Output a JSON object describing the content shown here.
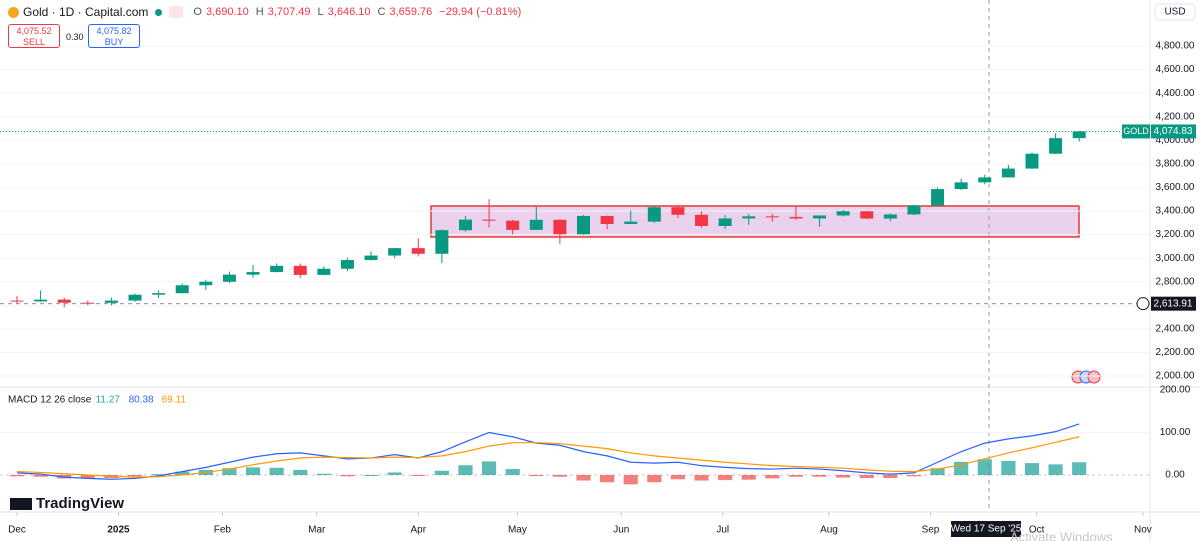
{
  "header": {
    "symbol": "Gold · 1D · Capital.com",
    "ohlc": [
      {
        "label": "O",
        "value": "3,690.10"
      },
      {
        "label": "H",
        "value": "3,707.49"
      },
      {
        "label": "L",
        "value": "3,646.10"
      },
      {
        "label": "C",
        "value": "3,659.76"
      }
    ],
    "change": "−29.94 (−0.81%)",
    "sell": {
      "price": "4,075.52",
      "label": "SELL"
    },
    "spread": "0.30",
    "buy": {
      "price": "4,075.82",
      "label": "BUY"
    },
    "currency": "USD"
  },
  "branding": "TradingView",
  "watermark": "Activate Windows",
  "chart_data": [
    {
      "type": "candlestick",
      "categories": [
        null,
        null,
        null,
        null,
        null,
        null,
        null,
        null,
        null,
        null,
        null,
        null,
        null,
        null,
        null,
        null,
        null,
        null,
        null,
        null,
        null,
        null,
        null,
        null,
        null,
        null,
        null,
        null,
        null,
        null,
        null,
        null,
        null,
        null,
        null,
        null,
        null,
        null,
        null,
        null,
        null,
        null,
        null,
        null,
        null,
        null
      ],
      "open": [
        2640,
        2633,
        2648,
        2622,
        2621,
        2640,
        2690,
        2703,
        2770,
        2800,
        2860,
        2882,
        2935,
        2858,
        2910,
        2984,
        3022,
        3085,
        3037,
        3237,
        3327,
        3318,
        3240,
        3325,
        3203,
        3358,
        3290,
        3310,
        3432,
        3368,
        3273,
        3337,
        3355,
        3350,
        3337,
        3362,
        3398,
        3336,
        3371,
        3447,
        3586,
        3643,
        3685,
        3760,
        3886,
        4018
      ],
      "high": [
        2680,
        2726,
        2665,
        2640,
        2665,
        2700,
        2725,
        2785,
        2817,
        2886,
        2942,
        2955,
        2955,
        2930,
        3005,
        3057,
        3087,
        3168,
        3245,
        3357,
        3500,
        3325,
        3435,
        3330,
        3366,
        3360,
        3403,
        3446,
        3452,
        3398,
        3365,
        3375,
        3375,
        3438,
        3363,
        3409,
        3400,
        3378,
        3453,
        3600,
        3674,
        3707,
        3791,
        3897,
        4059,
        4080
      ],
      "low": [
        2610,
        2630,
        2583,
        2600,
        2600,
        2630,
        2660,
        2700,
        2730,
        2790,
        2835,
        2880,
        2832,
        2855,
        2890,
        2980,
        3000,
        3015,
        2957,
        3225,
        3260,
        3202,
        3240,
        3121,
        3200,
        3245,
        3290,
        3300,
        3340,
        3255,
        3248,
        3283,
        3309,
        3324,
        3268,
        3354,
        3330,
        3311,
        3366,
        3437,
        3578,
        3627,
        3684,
        3758,
        3883,
        3990
      ],
      "close": [
        2633,
        2648,
        2622,
        2621,
        2640,
        2690,
        2703,
        2770,
        2800,
        2860,
        2882,
        2935,
        2858,
        2910,
        2984,
        3022,
        3085,
        3037,
        3237,
        3327,
        3318,
        3240,
        3325,
        3203,
        3358,
        3290,
        3310,
        3432,
        3368,
        3273,
        3337,
        3355,
        3350,
        3337,
        3362,
        3398,
        3336,
        3371,
        3447,
        3586,
        3643,
        3685,
        3760,
        3886,
        4018,
        4075
      ],
      "up_color": "#089981",
      "down_color": "#f23645",
      "xlim": [
        -0.72,
        48
      ],
      "xticks": [
        {
          "value": 0,
          "label": "Dec"
        },
        {
          "value": 4.3,
          "label": "2025"
        },
        {
          "value": 8.7,
          "label": "Feb"
        },
        {
          "value": 12.7,
          "label": "Mar"
        },
        {
          "value": 17,
          "label": "Apr"
        },
        {
          "value": 21.2,
          "label": "May"
        },
        {
          "value": 25.6,
          "label": "Jun"
        },
        {
          "value": 29.9,
          "label": "Jul"
        },
        {
          "value": 34.4,
          "label": "Aug"
        },
        {
          "value": 38.7,
          "label": "Sep"
        },
        {
          "value": 43.2,
          "label": "Oct"
        },
        {
          "value": 47.7,
          "label": "Nov"
        }
      ],
      "ylim": [
        1907,
        5190
      ],
      "yticks": [
        {
          "value": 2000,
          "label": "2,000.00"
        },
        {
          "value": 2200,
          "label": "2,200.00"
        },
        {
          "value": 2400,
          "label": "2,400.00"
        },
        {
          "value": 2600,
          "label": "2,600.00"
        },
        {
          "value": 2800,
          "label": "2,800.00"
        },
        {
          "value": 3000,
          "label": "3,000.00"
        },
        {
          "value": 3200,
          "label": "3,200.00"
        },
        {
          "value": 3400,
          "label": "3,400.00"
        },
        {
          "value": 3600,
          "label": "3,600.00"
        },
        {
          "value": 3800,
          "label": "3,800.00"
        },
        {
          "value": 4000,
          "label": "4,000.00"
        },
        {
          "value": 4200,
          "label": "4,200.00"
        },
        {
          "value": 4400,
          "label": "4,400.00"
        },
        {
          "value": 4600,
          "label": "4,600.00"
        },
        {
          "value": 4800,
          "label": "4,800.00"
        }
      ],
      "grid": true,
      "last_price": {
        "name": "GOLD",
        "value": 4074.83,
        "label": "4,074.83",
        "color": "#089981"
      },
      "crosshair": {
        "price": {
          "value": 2613.91,
          "label": "2,613.91"
        },
        "date": "Wed 17 Sep '25"
      }
    },
    {
      "type": "macd",
      "title": "MACD 12 26 close",
      "ylim": [
        -87,
        207
      ],
      "yticks": [
        {
          "value": 0,
          "label": "0.00"
        },
        {
          "value": 100,
          "label": "100.00"
        },
        {
          "value": 200,
          "label": "200.00"
        }
      ],
      "series": [
        {
          "style": "histogram",
          "color": "#26a69a",
          "negative_color": "#ef5350",
          "legend_value": 11.27,
          "values": [
            -3,
            -4,
            -8,
            -8,
            -7,
            -3,
            2,
            8,
            12,
            16,
            18,
            17,
            12,
            3,
            -3,
            0,
            6,
            -1,
            10,
            23,
            32,
            14,
            -1,
            -4,
            -13,
            -17,
            -22,
            -17,
            -10,
            -13,
            -12,
            -11,
            -8,
            -4,
            -4,
            -6,
            -7,
            -7,
            -3,
            16,
            31,
            37,
            33,
            28,
            25,
            30
          ]
        },
        {
          "style": "line",
          "color": "#2962ff",
          "legend_value": 80.38,
          "values": [
            5,
            2,
            -5,
            -8,
            -10,
            -8,
            -2,
            8,
            18,
            30,
            42,
            50,
            52,
            45,
            38,
            40,
            48,
            40,
            55,
            78,
            100,
            90,
            75,
            70,
            55,
            45,
            30,
            28,
            30,
            22,
            18,
            15,
            14,
            16,
            14,
            10,
            5,
            2,
            5,
            30,
            55,
            75,
            85,
            92,
            102,
            120
          ]
        },
        {
          "style": "line",
          "color": "#ff9800",
          "legend_value": 69.11,
          "values": [
            8,
            6,
            3,
            0,
            -3,
            -5,
            -4,
            0,
            6,
            14,
            24,
            33,
            40,
            42,
            41,
            40,
            42,
            41,
            45,
            55,
            68,
            76,
            76,
            74,
            68,
            62,
            52,
            45,
            40,
            35,
            30,
            26,
            22,
            20,
            18,
            16,
            12,
            9,
            8,
            14,
            24,
            38,
            52,
            64,
            77,
            90
          ]
        }
      ]
    }
  ]
}
